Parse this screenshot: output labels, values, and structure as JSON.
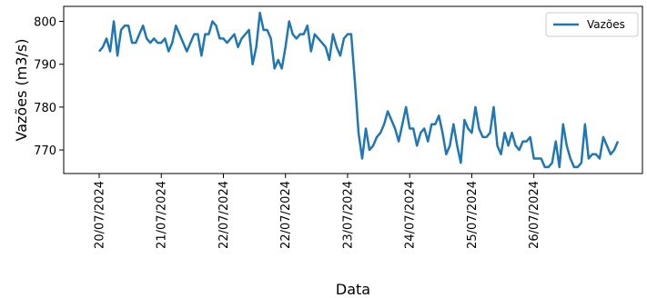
{
  "chart_data": {
    "type": "line",
    "title": "",
    "xlabel": "Data",
    "ylabel": "Vazões (m3/s)",
    "legend": {
      "placement": "top-right",
      "entries": [
        "Vazões"
      ]
    },
    "grid": false,
    "ylim": [
      764.5,
      803.5
    ],
    "yticks": [
      770,
      780,
      790,
      800
    ],
    "xtick_labels": [
      "20/07/2024",
      "21/07/2024",
      "22/07/2024",
      "22/07/2024",
      "23/07/2024",
      "24/07/2024",
      "25/07/2024",
      "26/07/2024"
    ],
    "xtick_index": [
      0,
      17,
      34,
      51,
      68,
      85,
      102,
      119
    ],
    "colors": {
      "line": "#1f77b4"
    },
    "series": [
      {
        "name": "Vazões",
        "values": [
          793,
          794,
          796,
          793,
          800,
          792,
          798,
          799,
          799,
          795,
          795,
          797,
          799,
          796,
          795,
          796,
          795,
          795,
          796,
          793,
          795,
          799,
          797,
          795,
          793,
          795,
          797,
          797,
          792,
          797,
          797,
          800,
          799,
          796,
          796,
          795,
          796,
          797,
          794,
          796,
          797,
          798,
          790,
          794,
          802,
          798,
          798,
          796,
          789,
          791,
          789,
          794,
          800,
          797,
          796,
          797,
          797,
          799,
          793,
          797,
          796,
          795,
          794,
          791,
          797,
          794,
          792,
          796,
          797,
          797,
          786,
          774,
          768,
          775,
          770,
          771,
          773,
          774,
          776,
          779,
          777,
          775,
          772,
          776,
          780,
          775,
          775,
          771,
          774,
          775,
          772,
          776,
          776,
          778,
          774,
          769,
          771,
          776,
          771,
          767,
          777,
          775,
          774,
          780,
          775,
          773,
          773,
          774,
          780,
          771,
          769,
          774,
          771,
          774,
          771,
          770,
          772,
          772,
          773,
          768,
          768,
          768,
          766,
          766,
          767,
          772,
          766,
          776,
          771,
          768,
          766,
          766,
          767,
          776,
          768,
          769,
          769,
          768,
          773,
          771,
          769,
          770,
          772
        ]
      }
    ]
  }
}
